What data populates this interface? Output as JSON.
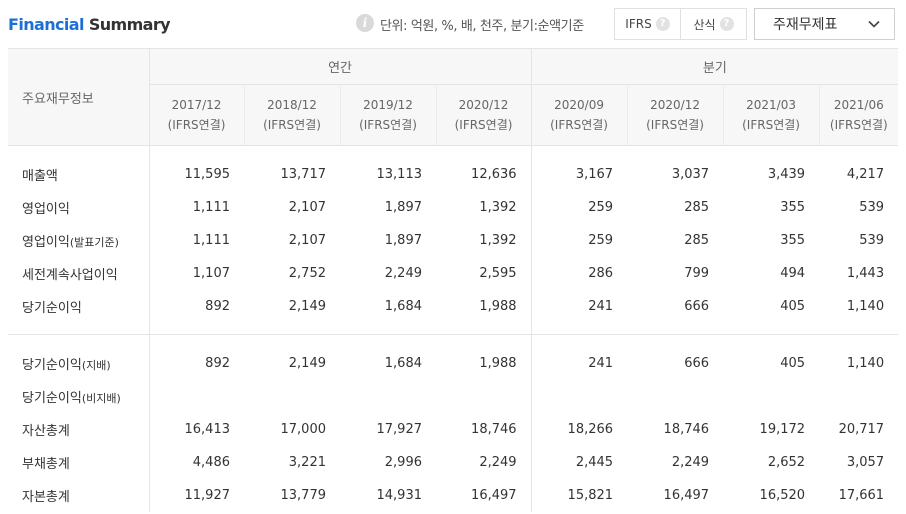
{
  "header": {
    "title_part1": "Financial",
    "title_part2": "Summary",
    "info_icon_glyph": "i",
    "unit_text": "단위: 억원, %, 배, 천주, 분기:순액기준",
    "toggle": [
      {
        "label": "IFRS",
        "help": "?"
      },
      {
        "label": "산식",
        "help": "?"
      }
    ],
    "select_value": "주재무제표"
  },
  "table": {
    "label_header": "주요재무정보",
    "group_annual": "연간",
    "group_quarter": "분기",
    "periods": [
      {
        "date": "2017/12",
        "basis": "(IFRS연결)"
      },
      {
        "date": "2018/12",
        "basis": "(IFRS연결)"
      },
      {
        "date": "2019/12",
        "basis": "(IFRS연결)"
      },
      {
        "date": "2020/12",
        "basis": "(IFRS연결)"
      },
      {
        "date": "2020/09",
        "basis": "(IFRS연결)"
      },
      {
        "date": "2020/12",
        "basis": "(IFRS연결)"
      },
      {
        "date": "2021/03",
        "basis": "(IFRS연결)"
      },
      {
        "date": "2021/06",
        "basis": "(IFRS연결)"
      }
    ],
    "rows_a": [
      {
        "label": "매출액",
        "label_small": "",
        "values": [
          "11,595",
          "13,717",
          "13,113",
          "12,636",
          "3,167",
          "3,037",
          "3,439",
          "4,217"
        ]
      },
      {
        "label": "영업이익",
        "label_small": "",
        "values": [
          "1,111",
          "2,107",
          "1,897",
          "1,392",
          "259",
          "285",
          "355",
          "539"
        ]
      },
      {
        "label": "영업이익",
        "label_small": "(발표기준)",
        "values": [
          "1,111",
          "2,107",
          "1,897",
          "1,392",
          "259",
          "285",
          "355",
          "539"
        ]
      },
      {
        "label": "세전계속사업이익",
        "label_small": "",
        "values": [
          "1,107",
          "2,752",
          "2,249",
          "2,595",
          "286",
          "799",
          "494",
          "1,443"
        ]
      },
      {
        "label": "당기순이익",
        "label_small": "",
        "values": [
          "892",
          "2,149",
          "1,684",
          "1,988",
          "241",
          "666",
          "405",
          "1,140"
        ]
      }
    ],
    "rows_b": [
      {
        "label": "당기순이익",
        "label_small": "(지배)",
        "values": [
          "892",
          "2,149",
          "1,684",
          "1,988",
          "241",
          "666",
          "405",
          "1,140"
        ]
      },
      {
        "label": "당기순이익",
        "label_small": "(비지배)",
        "values": [
          "",
          "",
          "",
          "",
          "",
          "",
          "",
          ""
        ]
      },
      {
        "label": "자산총계",
        "label_small": "",
        "values": [
          "16,413",
          "17,000",
          "17,927",
          "18,746",
          "18,266",
          "18,746",
          "19,172",
          "20,717"
        ]
      },
      {
        "label": "부채총계",
        "label_small": "",
        "values": [
          "4,486",
          "3,221",
          "2,996",
          "2,249",
          "2,445",
          "2,249",
          "2,652",
          "3,057"
        ]
      },
      {
        "label": "자본총계",
        "label_small": "",
        "values": [
          "11,927",
          "13,779",
          "14,931",
          "16,497",
          "15,821",
          "16,497",
          "16,520",
          "17,661"
        ]
      }
    ]
  }
}
